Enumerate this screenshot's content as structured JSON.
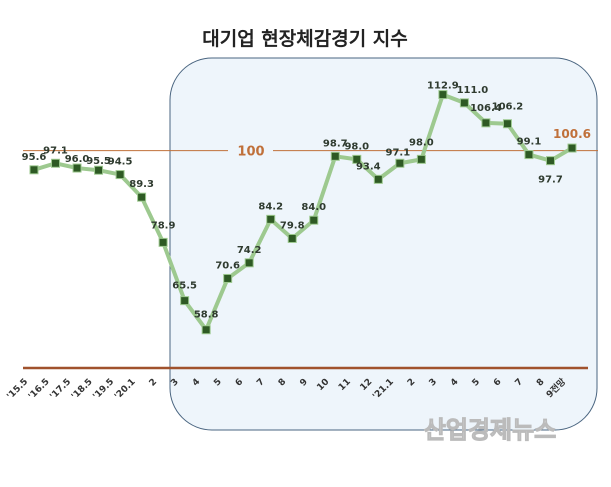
{
  "chart_data": {
    "type": "line",
    "title": "대기업 현장체감경기 지수",
    "categories": [
      "'15.5",
      "'16.5",
      "'17.5",
      "'18.5",
      "'19.5",
      "'20.1",
      "2",
      "3",
      "4",
      "5",
      "6",
      "7",
      "8",
      "9",
      "10",
      "11",
      "12",
      "'21.1",
      "2",
      "3",
      "4",
      "5",
      "6",
      "7",
      "8",
      "9전망"
    ],
    "values": [
      95.6,
      97.1,
      96.0,
      95.5,
      94.5,
      89.3,
      78.9,
      65.5,
      58.8,
      70.6,
      74.2,
      84.2,
      79.8,
      84.0,
      98.7,
      98.0,
      93.4,
      97.1,
      98.0,
      112.9,
      111.0,
      106.4,
      106.2,
      99.1,
      97.7,
      100.6
    ],
    "value_labels": [
      "95.6",
      "97.1",
      "96.0",
      "95.5",
      "94.5",
      "89.3",
      "78.9",
      "65.5",
      "58.8",
      "70.6",
      "74.2",
      "84.2",
      "79.8",
      "84.0",
      "98.7",
      "98.0",
      "93.4",
      "97.1",
      "98.0",
      "112.9",
      "111.0",
      "106.4",
      "106.2",
      "99.1",
      "97.7",
      "100.6"
    ],
    "ylim": [
      50,
      125
    ],
    "reference_line": {
      "value": 100,
      "label": "100"
    },
    "highlighted_range": [
      "3",
      "9전망"
    ],
    "grid": false,
    "colors": {
      "line": "#9dc98f",
      "marker": "#2e5a24",
      "reference": "#c0703a",
      "axis": "#a0522d",
      "highlight_fill": "#eef5fb",
      "highlight_border": "#4a6580",
      "last_label": "#c0703a"
    }
  },
  "watermark": "산업경제뉴스"
}
